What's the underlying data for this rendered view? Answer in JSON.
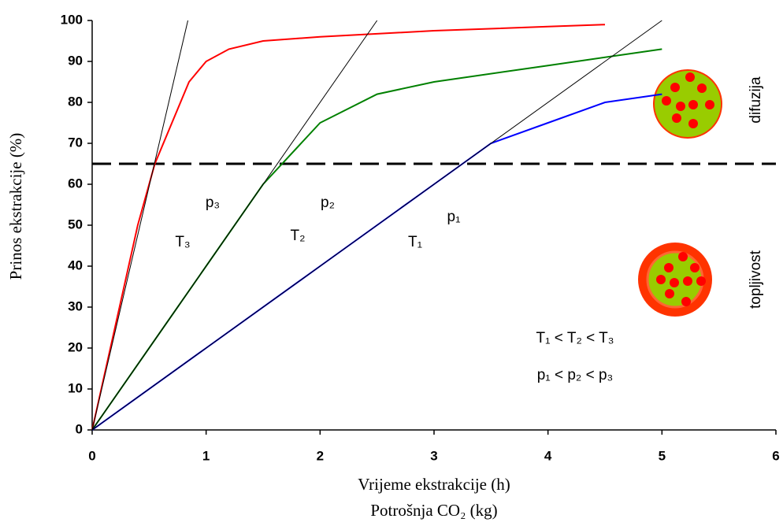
{
  "chart_data": {
    "type": "line",
    "xlabel": "Vrijeme ekstrakcije (h)",
    "xlabel2": "Potrošnja CO₂ (kg)",
    "ylabel": "Prinos ekstrakcije (%)",
    "xlim": [
      0,
      6
    ],
    "xticks": [
      0,
      1,
      2,
      3,
      4,
      5,
      6
    ],
    "ylim": [
      0,
      100
    ],
    "yticks": [
      0,
      10,
      20,
      30,
      40,
      50,
      60,
      70,
      80,
      90,
      100
    ],
    "hline": {
      "value": 65,
      "color": "#000000"
    },
    "series": [
      {
        "color": "#ff0000",
        "line_width": 2,
        "x": [
          0,
          0.2,
          0.4,
          0.55,
          0.7,
          0.85,
          1,
          1.2,
          1.5,
          2,
          3,
          4,
          4.5
        ],
        "values": [
          0,
          25,
          50,
          65,
          75,
          85,
          90,
          93,
          95,
          96,
          97.5,
          98.5,
          99
        ]
      },
      {
        "color": "#008000",
        "line_width": 2,
        "x": [
          0,
          0.5,
          0.75,
          1,
          1.5,
          2,
          2.5,
          3,
          4,
          5
        ],
        "values": [
          0,
          20,
          30,
          40,
          60,
          75,
          82,
          85,
          89,
          93
        ]
      },
      {
        "color": "#0000ff",
        "line_width": 2,
        "x": [
          0,
          0.7,
          1,
          2,
          3,
          3.5,
          4,
          4.5,
          5
        ],
        "values": [
          0,
          14,
          20,
          40,
          60,
          70,
          75,
          80,
          82
        ]
      },
      {
        "color": "#000000",
        "line_width": 1,
        "x": [
          0,
          0.84
        ],
        "values": [
          0,
          100
        ]
      },
      {
        "color": "#000000",
        "line_width": 1,
        "x": [
          0,
          2.5
        ],
        "values": [
          0,
          100
        ]
      },
      {
        "color": "#000000",
        "line_width": 1,
        "x": [
          0,
          5
        ],
        "values": [
          0,
          100
        ]
      }
    ],
    "annotations": [
      "p₃",
      "T₃",
      "p₂",
      "T₂",
      "p₁",
      "T₁",
      "T₁ < T₂ < T₃",
      "p₁ < p₂ < p₃",
      "difuzija",
      "topljivost"
    ]
  }
}
